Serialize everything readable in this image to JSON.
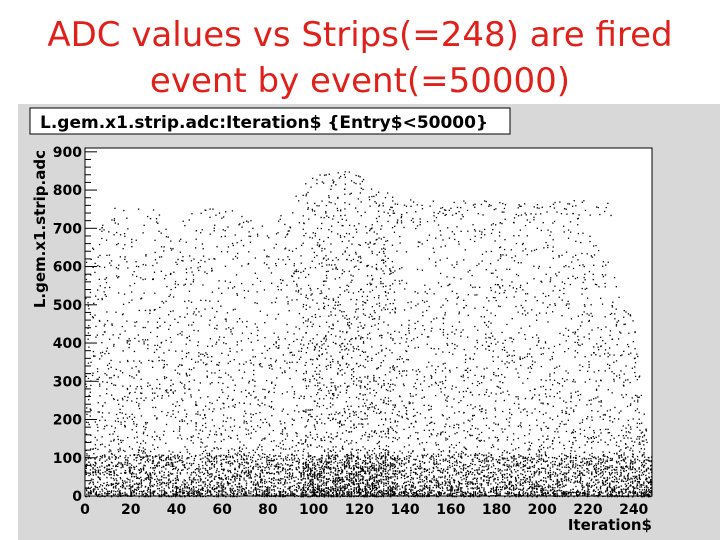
{
  "slide": {
    "title_line1": "ADC values vs Strips(=248) are fired",
    "title_line2": "event by event(=50000)"
  },
  "colors": {
    "title": "#e0201b",
    "canvas_bg": "#d8d8d8",
    "frame_bg": "#ffffff",
    "marker": "#000000"
  },
  "chart_data": {
    "type": "scatter",
    "title": "L.gem.x1.strip.adc:Iteration$ {Entry$<50000}",
    "xlabel": "Iteration$",
    "ylabel": "L.gem.x1.strip.adc",
    "xlim": [
      0,
      248
    ],
    "ylim": [
      0,
      910
    ],
    "x_ticks": [
      0,
      20,
      40,
      60,
      80,
      100,
      120,
      140,
      160,
      180,
      200,
      220,
      240
    ],
    "y_ticks": [
      0,
      100,
      200,
      300,
      400,
      500,
      600,
      700,
      800,
      900
    ],
    "grid": false,
    "marker": "dot",
    "n_strips": 248,
    "n_events": 50000,
    "density_profile": {
      "description_points": "strip index vs approximate upper ADC envelope",
      "strip": [
        0,
        10,
        20,
        40,
        60,
        80,
        95,
        100,
        110,
        120,
        130,
        140,
        150,
        160,
        180,
        200,
        220,
        240,
        248
      ],
      "upper_envelope": [
        620,
        760,
        700,
        740,
        760,
        700,
        820,
        840,
        850,
        850,
        800,
        780,
        760,
        760,
        770,
        760,
        740,
        450,
        40
      ]
    },
    "high_band": {
      "x_range": [
        150,
        230
      ],
      "y_center": 755
    }
  }
}
